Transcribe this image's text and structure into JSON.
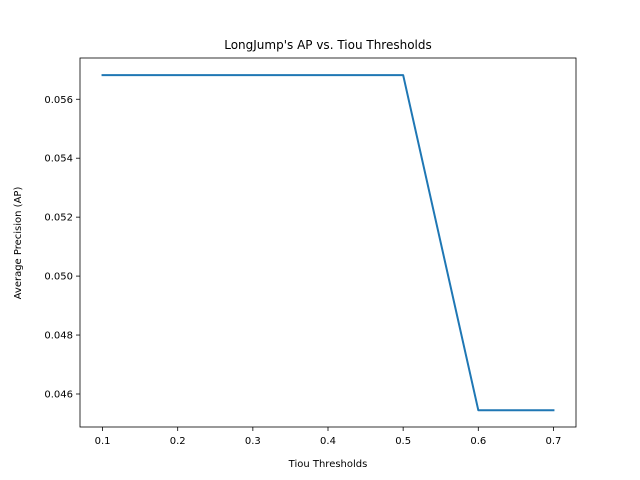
{
  "chart_data": {
    "type": "line",
    "title": "LongJump's AP vs. Tiou Thresholds",
    "xlabel": "Tiou Thresholds",
    "ylabel": "Average Precision (AP)",
    "x": [
      0.1,
      0.2,
      0.3,
      0.4,
      0.5,
      0.6,
      0.7
    ],
    "series": [
      {
        "values": [
          0.05682,
          0.05682,
          0.05682,
          0.05682,
          0.05682,
          0.04545,
          0.04545
        ],
        "color": "#1f77b4"
      }
    ],
    "xlim": [
      0.07,
      0.73
    ],
    "ylim": [
      0.04488,
      0.0574
    ],
    "xticks": [
      "0.1",
      "0.2",
      "0.3",
      "0.4",
      "0.5",
      "0.6",
      "0.7"
    ],
    "yticks": [
      "0.046",
      "0.048",
      "0.050",
      "0.052",
      "0.054",
      "0.056"
    ],
    "grid": false,
    "legend": "none"
  }
}
